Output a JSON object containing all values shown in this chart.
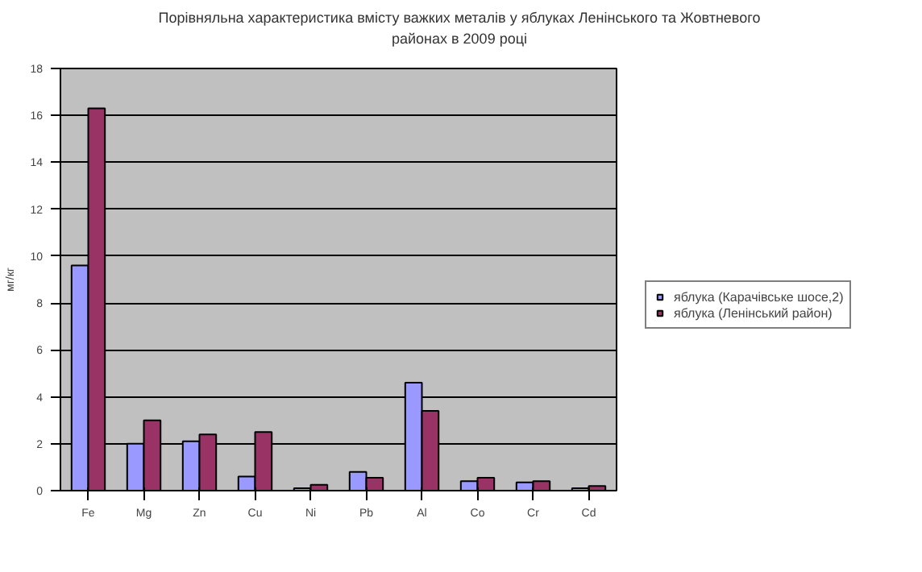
{
  "chart_data": {
    "type": "bar",
    "title": "Порівняльна характеристика вмісту важких металів у яблуках Ленінського та Жовтневого\nрайонах в 2009 році",
    "ylabel": "мг/кг",
    "categories": [
      "Fe",
      "Mg",
      "Zn",
      "Cu",
      "Ni",
      "Pb",
      "Al",
      "Co",
      "Cr",
      "Cd"
    ],
    "series": [
      {
        "name": "яблука (Карачівське шосе,2)",
        "color": "#9999ff",
        "values": [
          9.6,
          2.0,
          2.1,
          0.6,
          0.1,
          0.8,
          4.6,
          0.4,
          0.35,
          0.1
        ]
      },
      {
        "name": "яблука (Ленінський район)",
        "color": "#993366",
        "values": [
          16.3,
          3.0,
          2.4,
          2.5,
          0.25,
          0.55,
          3.4,
          0.55,
          0.4,
          0.2
        ]
      }
    ],
    "ylim": [
      0,
      18
    ],
    "yticks": [
      0,
      2,
      4,
      6,
      8,
      10,
      12,
      14,
      16,
      18
    ],
    "grid": "y",
    "legend": "right"
  }
}
